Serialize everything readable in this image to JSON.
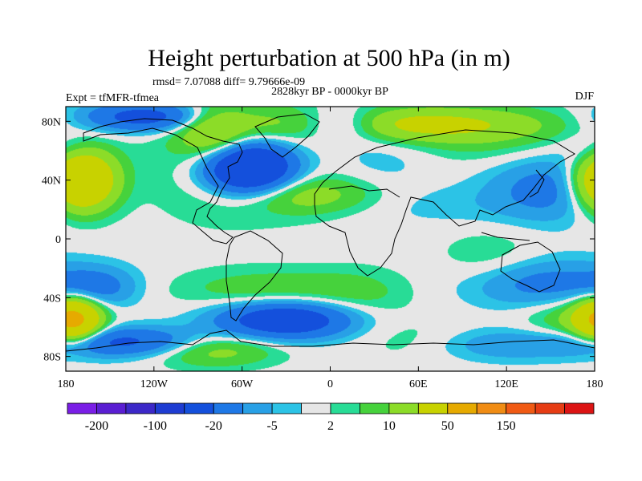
{
  "chart_data": {
    "type": "heatmap",
    "title": "Height perturbation at 500 hPa (in m)",
    "stats_line": "rmsd= 7.07088 diff= 9.79666e-09",
    "period": "2828kyr BP - 0000kyr BP",
    "experiment": "Expt = tfMFR-tfmea",
    "season": "DJF",
    "x_ticks": [
      {
        "lon": -180,
        "label": "180"
      },
      {
        "lon": -120,
        "label": "120W"
      },
      {
        "lon": -60,
        "label": "60W"
      },
      {
        "lon": 0,
        "label": "0"
      },
      {
        "lon": 60,
        "label": "60E"
      },
      {
        "lon": 120,
        "label": "120E"
      },
      {
        "lon": 180,
        "label": "180"
      }
    ],
    "y_ticks": [
      {
        "lat": 80,
        "label": "80N"
      },
      {
        "lat": 40,
        "label": "40N"
      },
      {
        "lat": 0,
        "label": "0"
      },
      {
        "lat": -40,
        "label": "40S"
      },
      {
        "lat": -80,
        "label": "80S"
      }
    ],
    "xlim": [
      -180,
      180
    ],
    "ylim": [
      -90,
      90
    ],
    "colorbar": {
      "colors": [
        "#7a1ee6",
        "#5a1ed2",
        "#3c28c8",
        "#1e3cd2",
        "#1450dc",
        "#1e78e6",
        "#28a0e6",
        "#2cc3e6",
        "#e6e6e6",
        "#28dc96",
        "#46d23c",
        "#8cdc28",
        "#c8d200",
        "#e6aa00",
        "#f08c14",
        "#f05a14",
        "#e63c14",
        "#dc1414"
      ],
      "labels": [
        {
          "after_box": 1,
          "text": "-200"
        },
        {
          "after_box": 3,
          "text": "-100"
        },
        {
          "after_box": 5,
          "text": "-20"
        },
        {
          "after_box": 7,
          "text": "-5"
        },
        {
          "after_box": 9,
          "text": "2"
        },
        {
          "after_box": 11,
          "text": "10"
        },
        {
          "after_box": 13,
          "text": "50"
        },
        {
          "after_box": 15,
          "text": "150"
        }
      ]
    },
    "field_features": [
      {
        "lon": -55,
        "lat": 48,
        "slon": 22,
        "slat": 13,
        "amp": -55,
        "desc": "North Atlantic low"
      },
      {
        "lon": -125,
        "lat": 83,
        "slon": 30,
        "slat": 7,
        "amp": -28
      },
      {
        "lon": 8,
        "lat": 78,
        "slon": 22,
        "slat": 8,
        "amp": -22
      },
      {
        "lon": 35,
        "lat": 55,
        "slon": 25,
        "slat": 14,
        "amp": -4
      },
      {
        "lon": 150,
        "lat": 35,
        "slon": 30,
        "slat": 16,
        "amp": -14
      },
      {
        "lon": 180,
        "lat": 60,
        "slon": 15,
        "slat": 10,
        "amp": -8
      },
      {
        "lon": 75,
        "lat": 22,
        "slon": 45,
        "slat": 10,
        "amp": -3
      },
      {
        "lon": -170,
        "lat": 40,
        "slon": 16,
        "slat": 14,
        "amp": 55,
        "desc": "North Pacific high"
      },
      {
        "lon": -80,
        "lat": 72,
        "slon": 16,
        "slat": 12,
        "amp": 18
      },
      {
        "lon": 45,
        "lat": 78,
        "slon": 60,
        "slat": 8,
        "amp": 25
      },
      {
        "lon": -20,
        "lat": 30,
        "slon": 35,
        "slat": 9,
        "amp": 14
      },
      {
        "lon": 110,
        "lat": 70,
        "slon": 40,
        "slat": 14,
        "amp": 7
      },
      {
        "lon": -65,
        "lat": 57,
        "slon": 40,
        "slat": 30,
        "amp": 9
      },
      {
        "lon": -30,
        "lat": -55,
        "slon": 32,
        "slat": 9,
        "amp": -35,
        "desc": "South Atlantic low"
      },
      {
        "lon": -140,
        "lat": -70,
        "slon": 40,
        "slat": 7,
        "amp": -24
      },
      {
        "lon": -160,
        "lat": -33,
        "slon": 20,
        "slat": 10,
        "amp": -14
      },
      {
        "lon": 140,
        "lat": -30,
        "slon": 35,
        "slat": 12,
        "amp": -14
      },
      {
        "lon": 115,
        "lat": -72,
        "slon": 40,
        "slat": 8,
        "amp": -9
      },
      {
        "lon": -175,
        "lat": -55,
        "slon": 12,
        "slat": 10,
        "amp": 55,
        "desc": "South Pacific high"
      },
      {
        "lon": -40,
        "lat": -35,
        "slon": 45,
        "slat": 10,
        "amp": 9
      },
      {
        "lon": -80,
        "lat": -75,
        "slon": 30,
        "slat": 8,
        "amp": 16
      },
      {
        "lon": 20,
        "lat": -40,
        "slon": 25,
        "slat": 14,
        "amp": 5
      },
      {
        "lon": 170,
        "lat": -55,
        "slon": 25,
        "slat": 10,
        "amp": 12
      },
      {
        "lon": 110,
        "lat": -15,
        "slon": 25,
        "slat": 15,
        "amp": 6
      },
      {
        "lon": 60,
        "lat": -70,
        "slon": 30,
        "slat": 10,
        "amp": 5
      }
    ]
  }
}
